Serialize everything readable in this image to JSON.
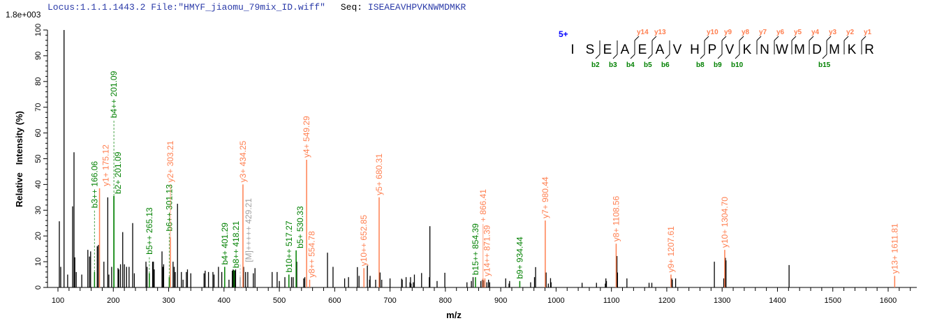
{
  "header": {
    "locus_file": "Locus:1.1.1.1443.2 File:\"HMYF_jiaomu_79mix_ID.wiff\"",
    "seq_key": "Seq:",
    "seq_value": "ISEAEAVHPVKNWMDMKR"
  },
  "colors": {
    "y_ion": "#ff7f50",
    "b_ion": "#008000",
    "precursor": "#a0a0a0",
    "peak": "#000000",
    "charge": "#0000ff"
  },
  "sequence_panel": {
    "charge": "5+",
    "letters": [
      "I",
      "S",
      "E",
      "A",
      "E",
      "A",
      "V",
      "H",
      "P",
      "V",
      "K",
      "N",
      "W",
      "M",
      "D",
      "M",
      "K",
      "R"
    ],
    "separators": [
      2,
      3,
      4,
      5,
      6,
      8,
      9,
      10,
      11,
      12,
      13,
      14,
      15,
      16,
      17
    ],
    "y_marks": [
      {
        "pos": 4,
        "label": "y14"
      },
      {
        "pos": 5,
        "label": "y13"
      },
      {
        "pos": 8,
        "label": "y10"
      },
      {
        "pos": 9,
        "label": "y9"
      },
      {
        "pos": 10,
        "label": "y8"
      },
      {
        "pos": 11,
        "label": "y7"
      },
      {
        "pos": 12,
        "label": "y6"
      },
      {
        "pos": 13,
        "label": "y5"
      },
      {
        "pos": 14,
        "label": "y4"
      },
      {
        "pos": 15,
        "label": "y3"
      },
      {
        "pos": 16,
        "label": "y2"
      },
      {
        "pos": 17,
        "label": "y1"
      }
    ],
    "b_marks": [
      {
        "pos": 2,
        "label": "b2"
      },
      {
        "pos": 3,
        "label": "b3"
      },
      {
        "pos": 4,
        "label": "b4"
      },
      {
        "pos": 5,
        "label": "b5"
      },
      {
        "pos": 6,
        "label": "b6"
      },
      {
        "pos": 8,
        "label": "b8"
      },
      {
        "pos": 9,
        "label": "b9"
      },
      {
        "pos": 10,
        "label": "b10"
      },
      {
        "pos": 15,
        "label": "b15"
      }
    ]
  },
  "chart_data": {
    "type": "bar",
    "scale_label": "1.8e+003",
    "xlabel": "m/z",
    "ylabel": "Relative   Intensity (%)",
    "xlim": [
      81,
      1652
    ],
    "ylim": [
      0,
      100
    ],
    "x_ticks": [
      100,
      200,
      300,
      400,
      500,
      600,
      700,
      800,
      900,
      1000,
      1100,
      1200,
      1300,
      1400,
      1500,
      1600
    ],
    "y_ticks": [
      0,
      10,
      20,
      30,
      40,
      50,
      60,
      70,
      80,
      90,
      100
    ],
    "grid": false,
    "peaks": [
      [
        102.5,
        25.7
      ],
      [
        105,
        8
      ],
      [
        111,
        100
      ],
      [
        117.5,
        5
      ],
      [
        126.5,
        31.5
      ],
      [
        129,
        52.5
      ],
      [
        130.5,
        11.7
      ],
      [
        133,
        6
      ],
      [
        143,
        5
      ],
      [
        154,
        14.6
      ],
      [
        157,
        12
      ],
      [
        159,
        14
      ],
      [
        171,
        16
      ],
      [
        173,
        16.5
      ],
      [
        183,
        10
      ],
      [
        190,
        35
      ],
      [
        192,
        5
      ],
      [
        197,
        8
      ],
      [
        208.5,
        7.5
      ],
      [
        210,
        7
      ],
      [
        213,
        9
      ],
      [
        217,
        21.5
      ],
      [
        220,
        9
      ],
      [
        224,
        8
      ],
      [
        228.5,
        8
      ],
      [
        235,
        25
      ],
      [
        238,
        5.5
      ],
      [
        259,
        10
      ],
      [
        261,
        8
      ],
      [
        271,
        10
      ],
      [
        272.5,
        10
      ],
      [
        274,
        7
      ],
      [
        288,
        14
      ],
      [
        289.5,
        8
      ],
      [
        291,
        9
      ],
      [
        308,
        10
      ],
      [
        310,
        8
      ],
      [
        312,
        6
      ],
      [
        316,
        32.5
      ],
      [
        323,
        6
      ],
      [
        326,
        3
      ],
      [
        332,
        6
      ],
      [
        334,
        7
      ],
      [
        340,
        5.5
      ],
      [
        364,
        5.5
      ],
      [
        366,
        6.5
      ],
      [
        372,
        6
      ],
      [
        380,
        6
      ],
      [
        382,
        5
      ],
      [
        390,
        8
      ],
      [
        396,
        6
      ],
      [
        409,
        3
      ],
      [
        415,
        6.5
      ],
      [
        416.5,
        7
      ],
      [
        419.5,
        6.5
      ],
      [
        421,
        7
      ],
      [
        435.5,
        8
      ],
      [
        439,
        6
      ],
      [
        443,
        6
      ],
      [
        453,
        5.5
      ],
      [
        456,
        7.5
      ],
      [
        487,
        6
      ],
      [
        500,
        2.5
      ],
      [
        496,
        6
      ],
      [
        510,
        4
      ],
      [
        522,
        4
      ],
      [
        525,
        4
      ],
      [
        531.5,
        10
      ],
      [
        544,
        3.5
      ],
      [
        546,
        4
      ],
      [
        587,
        13.5
      ],
      [
        597,
        8
      ],
      [
        618,
        3.5
      ],
      [
        625,
        4
      ],
      [
        641,
        7.9
      ],
      [
        644,
        4.5
      ],
      [
        659,
        8.5
      ],
      [
        663,
        3
      ],
      [
        664,
        4.5
      ],
      [
        674,
        3
      ],
      [
        681,
        5.8
      ],
      [
        682,
        5.8
      ],
      [
        685,
        3
      ],
      [
        700,
        3.5
      ],
      [
        721,
        3.4
      ],
      [
        722,
        3
      ],
      [
        729,
        4
      ],
      [
        736,
        2
      ],
      [
        737,
        4
      ],
      [
        738,
        1.5
      ],
      [
        742,
        2
      ],
      [
        744,
        5
      ],
      [
        757,
        5.6
      ],
      [
        771,
        4
      ],
      [
        772,
        23.8
      ],
      [
        785,
        2.5
      ],
      [
        799,
        5.7
      ],
      [
        839,
        2
      ],
      [
        847,
        2.5
      ],
      [
        850,
        4
      ],
      [
        864,
        2.5
      ],
      [
        867,
        3
      ],
      [
        869,
        2.8
      ],
      [
        875,
        2
      ],
      [
        878,
        3
      ],
      [
        880,
        2
      ],
      [
        909,
        3.5
      ],
      [
        915,
        1.5
      ],
      [
        916,
        2.5
      ],
      [
        954,
        2
      ],
      [
        961,
        4
      ],
      [
        963,
        7.9
      ],
      [
        982,
        5.8
      ],
      [
        986,
        1.5
      ],
      [
        990,
        3.6
      ],
      [
        991,
        2
      ],
      [
        1047,
        1.8
      ],
      [
        1073,
        1.8
      ],
      [
        1089,
        1.5
      ],
      [
        1090,
        3.5
      ],
      [
        1091,
        2.5
      ],
      [
        1110,
        12.2
      ],
      [
        1111,
        5.8
      ],
      [
        1128,
        3.5
      ],
      [
        1168,
        1.8
      ],
      [
        1173,
        1.8
      ],
      [
        1209,
        3.5
      ],
      [
        1210,
        3
      ],
      [
        1216,
        3.5
      ],
      [
        1286,
        10
      ],
      [
        1303,
        3.5
      ],
      [
        1306,
        11.5
      ],
      [
        1307,
        10.5
      ],
      [
        1421,
        8.7
      ]
    ],
    "annotations": [
      {
        "label": "b3++ 166.06",
        "mz": 166.06,
        "intensity": 6,
        "type": "b",
        "label_at": 30
      },
      {
        "label": "y1+ 175.12",
        "mz": 175.12,
        "intensity": 38.5,
        "type": "y"
      },
      {
        "label": "b2+ 201.09",
        "mz": 201.09,
        "intensity": 35.5,
        "type": "b"
      },
      {
        "label": "b4++ 201.09",
        "mz": 201.09,
        "intensity": 35.5,
        "type": "b",
        "label_at": 65
      },
      {
        "label": "b5++ 265.13",
        "mz": 265.13,
        "intensity": 5.5,
        "type": "b",
        "label_at": 12
      },
      {
        "label": "b6++ 301.13",
        "mz": 301.13,
        "intensity": 4,
        "type": "b",
        "label_at": 21
      },
      {
        "label": "y2+ 303.21",
        "mz": 303.21,
        "intensity": 19.5,
        "type": "y",
        "label_at": 40
      },
      {
        "label": "b4+ 401.29",
        "mz": 401.29,
        "intensity": 8,
        "type": "b"
      },
      {
        "label": "b8++ 418.21",
        "mz": 418.21,
        "intensity": 6.7,
        "type": "b"
      },
      {
        "label": "[M]+++++ 429.21",
        "mz": 429.21,
        "intensity": 4,
        "type": "p",
        "label_at": 9
      },
      {
        "label": "y3+ 434.25",
        "mz": 434.25,
        "intensity": 40,
        "type": "y"
      },
      {
        "label": "b10++ 517.27",
        "mz": 517.27,
        "intensity": 5,
        "type": "b"
      },
      {
        "label": "b5+ 530.33",
        "mz": 530.33,
        "intensity": 14.4,
        "type": "b"
      },
      {
        "label": "y4+ 549.29",
        "mz": 549.29,
        "intensity": 49.6,
        "type": "y"
      },
      {
        "label": "y8++ 554.78",
        "mz": 554.78,
        "intensity": 3,
        "type": "y"
      },
      {
        "label": "y10++ 652.85",
        "mz": 652.85,
        "intensity": 7.5,
        "type": "y"
      },
      {
        "label": "y5+ 680.31",
        "mz": 680.31,
        "intensity": 35,
        "type": "y"
      },
      {
        "label": "b15++ 854.39",
        "mz": 854.39,
        "intensity": 4,
        "type": "b"
      },
      {
        "label": "y14++ 871.39",
        "mz": 871.39,
        "intensity": 3.5,
        "type": "y"
      },
      {
        "label": "+ 866.41",
        "mz": 868,
        "intensity": 3.5,
        "type": "y",
        "label_at": 23
      },
      {
        "label": "b9+ 934.44",
        "mz": 934.44,
        "intensity": 2.5,
        "type": "b"
      },
      {
        "label": "y7+ 980.44",
        "mz": 980.44,
        "intensity": 26,
        "type": "y"
      },
      {
        "label": "y8+ 1108.56",
        "mz": 1108.56,
        "intensity": 17,
        "type": "y"
      },
      {
        "label": "y9+ 1207.61",
        "mz": 1207.61,
        "intensity": 5,
        "type": "y"
      },
      {
        "label": "y10+ 1304.70",
        "mz": 1304.7,
        "intensity": 14.6,
        "type": "y"
      },
      {
        "label": "y13+ 1611.81",
        "mz": 1611.81,
        "intensity": 4.5,
        "type": "y"
      }
    ]
  }
}
